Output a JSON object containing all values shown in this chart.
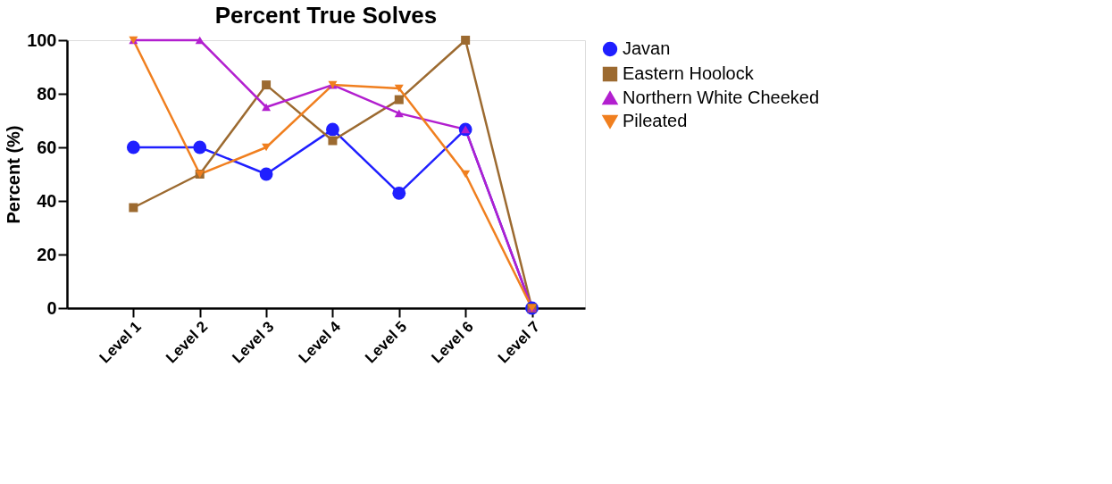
{
  "chart_data": {
    "type": "line",
    "title": "Percent True Solves",
    "ylabel": "Percent (%)",
    "categories": [
      "Level 1",
      "Level 2",
      "Level 3",
      "Level 4",
      "Level 5",
      "Level 6",
      "Level 7"
    ],
    "ylim": [
      0,
      100
    ],
    "yticks": [
      0,
      20,
      40,
      60,
      80,
      100
    ],
    "grid": false,
    "legend": "right",
    "series": [
      {
        "name": "Javan",
        "color": "#1f1fff",
        "marker": "circle",
        "values": [
          60,
          60,
          50,
          66.7,
          42.9,
          66.7,
          0
        ]
      },
      {
        "name": "Eastern Hoolock",
        "color": "#9c6a30",
        "marker": "square",
        "values": [
          37.5,
          50,
          83.3,
          62.5,
          77.8,
          100,
          0
        ]
      },
      {
        "name": "Northern White Cheeked",
        "color": "#b21fcf",
        "marker": "triangle",
        "values": [
          100,
          100,
          75,
          83.3,
          72.7,
          66.7,
          0
        ]
      },
      {
        "name": "Pileated",
        "color": "#f07f1f",
        "marker": "triangle-down",
        "values": [
          100,
          50,
          60,
          83.3,
          82,
          50,
          0
        ]
      }
    ]
  }
}
